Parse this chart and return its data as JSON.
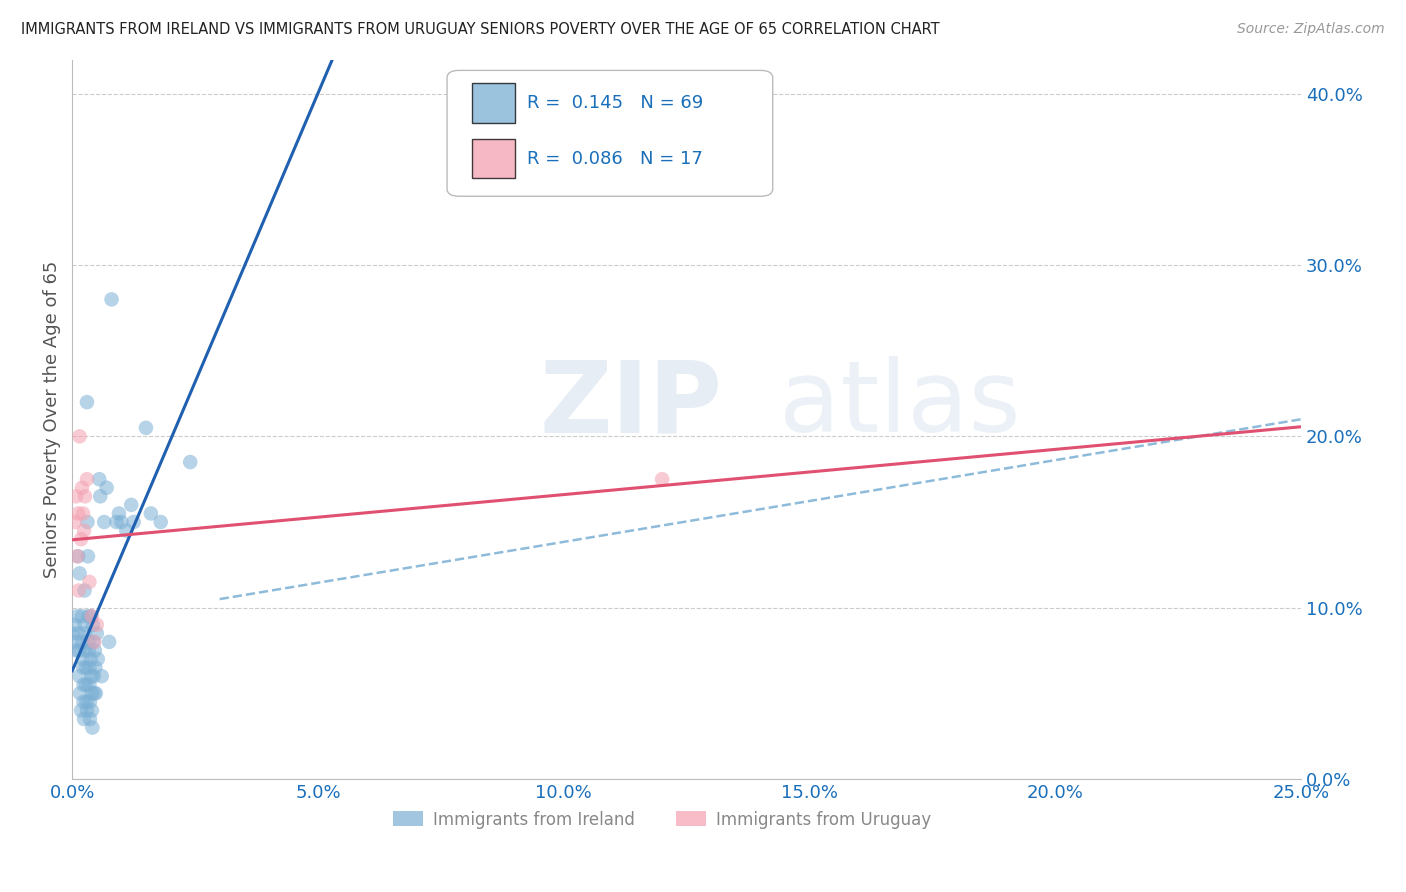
{
  "title": "IMMIGRANTS FROM IRELAND VS IMMIGRANTS FROM URUGUAY SENIORS POVERTY OVER THE AGE OF 65 CORRELATION CHART",
  "source": "Source: ZipAtlas.com",
  "ylabel": "Seniors Poverty Over the Age of 65",
  "xlim": [
    0.0,
    0.25
  ],
  "ylim": [
    0.0,
    0.42
  ],
  "xticks": [
    0.0,
    0.05,
    0.1,
    0.15,
    0.2,
    0.25
  ],
  "yticks_right": [
    0.0,
    0.1,
    0.2,
    0.3,
    0.4
  ],
  "ireland_color": "#7bafd4",
  "uruguay_color": "#f4a0b0",
  "ireland_line_color": "#2060b0",
  "ireland_dash_color": "#7bafd4",
  "uruguay_line_color": "#e05070",
  "R_ireland": 0.145,
  "N_ireland": 69,
  "R_uruguay": 0.086,
  "N_uruguay": 17,
  "ireland_scatter": [
    [
      0.0,
      0.085
    ],
    [
      0.0005,
      0.09
    ],
    [
      0.0008,
      0.075
    ],
    [
      0.001,
      0.095
    ],
    [
      0.001,
      0.08
    ],
    [
      0.0012,
      0.13
    ],
    [
      0.0013,
      0.085
    ],
    [
      0.0014,
      0.075
    ],
    [
      0.0015,
      0.12
    ],
    [
      0.0015,
      0.06
    ],
    [
      0.0016,
      0.05
    ],
    [
      0.0018,
      0.04
    ],
    [
      0.002,
      0.095
    ],
    [
      0.002,
      0.08
    ],
    [
      0.0022,
      0.07
    ],
    [
      0.0022,
      0.065
    ],
    [
      0.0023,
      0.055
    ],
    [
      0.0023,
      0.045
    ],
    [
      0.0024,
      0.035
    ],
    [
      0.0025,
      0.11
    ],
    [
      0.0025,
      0.09
    ],
    [
      0.0026,
      0.085
    ],
    [
      0.0027,
      0.075
    ],
    [
      0.0028,
      0.065
    ],
    [
      0.0028,
      0.055
    ],
    [
      0.0029,
      0.045
    ],
    [
      0.003,
      0.04
    ],
    [
      0.003,
      0.22
    ],
    [
      0.0031,
      0.15
    ],
    [
      0.0032,
      0.13
    ],
    [
      0.0033,
      0.095
    ],
    [
      0.0033,
      0.08
    ],
    [
      0.0034,
      0.075
    ],
    [
      0.0035,
      0.065
    ],
    [
      0.0035,
      0.055
    ],
    [
      0.0036,
      0.045
    ],
    [
      0.0036,
      0.035
    ],
    [
      0.0038,
      0.095
    ],
    [
      0.0038,
      0.07
    ],
    [
      0.0039,
      0.06
    ],
    [
      0.004,
      0.05
    ],
    [
      0.004,
      0.04
    ],
    [
      0.0041,
      0.03
    ],
    [
      0.0042,
      0.09
    ],
    [
      0.0043,
      0.08
    ],
    [
      0.0044,
      0.06
    ],
    [
      0.0045,
      0.05
    ],
    [
      0.0046,
      0.075
    ],
    [
      0.0047,
      0.065
    ],
    [
      0.0048,
      0.05
    ],
    [
      0.005,
      0.085
    ],
    [
      0.0052,
      0.07
    ],
    [
      0.0055,
      0.175
    ],
    [
      0.0057,
      0.165
    ],
    [
      0.006,
      0.06
    ],
    [
      0.0065,
      0.15
    ],
    [
      0.007,
      0.17
    ],
    [
      0.0075,
      0.08
    ],
    [
      0.008,
      0.28
    ],
    [
      0.009,
      0.15
    ],
    [
      0.0095,
      0.155
    ],
    [
      0.011,
      0.145
    ],
    [
      0.012,
      0.16
    ],
    [
      0.0125,
      0.15
    ],
    [
      0.015,
      0.205
    ],
    [
      0.016,
      0.155
    ],
    [
      0.018,
      0.15
    ],
    [
      0.024,
      0.185
    ],
    [
      0.01,
      0.15
    ]
  ],
  "uruguay_scatter": [
    [
      0.0005,
      0.15
    ],
    [
      0.0008,
      0.165
    ],
    [
      0.001,
      0.13
    ],
    [
      0.0012,
      0.155
    ],
    [
      0.0013,
      0.11
    ],
    [
      0.0015,
      0.2
    ],
    [
      0.0018,
      0.14
    ],
    [
      0.002,
      0.17
    ],
    [
      0.0022,
      0.155
    ],
    [
      0.0024,
      0.145
    ],
    [
      0.0026,
      0.165
    ],
    [
      0.003,
      0.175
    ],
    [
      0.0035,
      0.115
    ],
    [
      0.004,
      0.095
    ],
    [
      0.0045,
      0.08
    ],
    [
      0.005,
      0.09
    ],
    [
      0.12,
      0.175
    ]
  ],
  "legend_color": "#1a6fbb",
  "background_color": "#ffffff",
  "grid_color": "#cccccc"
}
